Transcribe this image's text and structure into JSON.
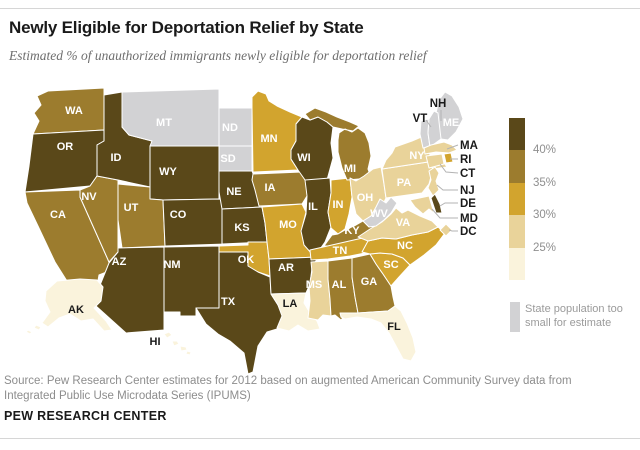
{
  "header": {
    "title": "Newly Eligible for Deportation Relief by State",
    "subtitle": "Estimated % of unauthorized immigrants newly eligible for deportation relief"
  },
  "legend": {
    "tick_labels": [
      "40%",
      "35%",
      "30%",
      "25%"
    ],
    "bins": [
      {
        "id": "gt40",
        "range": ">40%",
        "color": "#5a4819"
      },
      {
        "id": "b35_40",
        "range": "35-40%",
        "color": "#9c7c2e"
      },
      {
        "id": "b30_35",
        "range": "30-35%",
        "color": "#d2a42e"
      },
      {
        "id": "b25_30",
        "range": "25-30%",
        "color": "#e9d39a"
      },
      {
        "id": "lt25",
        "range": "<25%",
        "color": "#faf3dc"
      }
    ],
    "too_small": {
      "label": "State population too small for estimate",
      "color": "#d2d2d4"
    }
  },
  "map": {
    "label_color_dark": "#1a1a1a",
    "label_color_light": "#ffffff",
    "border_color": "#ffffff",
    "leader_line_color": "#b3b3b3",
    "states": {
      "WA": {
        "abbr": "WA",
        "bin": "b35_40"
      },
      "OR": {
        "abbr": "OR",
        "bin": "gt40"
      },
      "CA": {
        "abbr": "CA",
        "bin": "b35_40"
      },
      "NV": {
        "abbr": "NV",
        "bin": "b35_40"
      },
      "ID": {
        "abbr": "ID",
        "bin": "gt40"
      },
      "MT": {
        "abbr": "MT",
        "bin": "na"
      },
      "WY": {
        "abbr": "WY",
        "bin": "gt40"
      },
      "UT": {
        "abbr": "UT",
        "bin": "b35_40"
      },
      "CO": {
        "abbr": "CO",
        "bin": "gt40"
      },
      "AZ": {
        "abbr": "AZ",
        "bin": "gt40"
      },
      "NM": {
        "abbr": "NM",
        "bin": "gt40"
      },
      "ND": {
        "abbr": "ND",
        "bin": "na"
      },
      "SD": {
        "abbr": "SD",
        "bin": "na"
      },
      "NE": {
        "abbr": "NE",
        "bin": "gt40"
      },
      "KS": {
        "abbr": "KS",
        "bin": "gt40"
      },
      "OK": {
        "abbr": "OK",
        "bin": "b30_35"
      },
      "TX": {
        "abbr": "TX",
        "bin": "gt40"
      },
      "MN": {
        "abbr": "MN",
        "bin": "b30_35"
      },
      "IA": {
        "abbr": "IA",
        "bin": "b35_40"
      },
      "MO": {
        "abbr": "MO",
        "bin": "b30_35"
      },
      "AR": {
        "abbr": "AR",
        "bin": "gt40"
      },
      "LA": {
        "abbr": "LA",
        "bin": "lt25"
      },
      "WI": {
        "abbr": "WI",
        "bin": "gt40"
      },
      "IL": {
        "abbr": "IL",
        "bin": "gt40"
      },
      "IN": {
        "abbr": "IN",
        "bin": "b30_35"
      },
      "MI": {
        "abbr": "MI",
        "bin": "b35_40"
      },
      "OH": {
        "abbr": "OH",
        "bin": "b25_30"
      },
      "KY": {
        "abbr": "KY",
        "bin": "b35_40"
      },
      "TN": {
        "abbr": "TN",
        "bin": "b30_35"
      },
      "MS": {
        "abbr": "MS",
        "bin": "b25_30"
      },
      "AL": {
        "abbr": "AL",
        "bin": "b35_40"
      },
      "GA": {
        "abbr": "GA",
        "bin": "b35_40"
      },
      "FL": {
        "abbr": "FL",
        "bin": "lt25"
      },
      "SC": {
        "abbr": "SC",
        "bin": "b30_35"
      },
      "NC": {
        "abbr": "NC",
        "bin": "b30_35"
      },
      "VA": {
        "abbr": "VA",
        "bin": "b25_30"
      },
      "WV": {
        "abbr": "WV",
        "bin": "na"
      },
      "PA": {
        "abbr": "PA",
        "bin": "b25_30"
      },
      "NY": {
        "abbr": "NY",
        "bin": "b25_30"
      },
      "ME": {
        "abbr": "ME",
        "bin": "na"
      },
      "VT": {
        "abbr": "VT",
        "bin": "na"
      },
      "NH": {
        "abbr": "NH",
        "bin": "na"
      },
      "MA": {
        "abbr": "MA",
        "bin": "b25_30"
      },
      "RI": {
        "abbr": "RI",
        "bin": "b30_35"
      },
      "CT": {
        "abbr": "CT",
        "bin": "b25_30"
      },
      "NJ": {
        "abbr": "NJ",
        "bin": "b25_30"
      },
      "DE": {
        "abbr": "DE",
        "bin": "gt40"
      },
      "MD": {
        "abbr": "MD",
        "bin": "b25_30"
      },
      "DC": {
        "abbr": "DC",
        "bin": "b25_30"
      },
      "AK": {
        "abbr": "AK",
        "bin": "lt25"
      },
      "HI": {
        "abbr": "HI",
        "bin": "lt25"
      }
    }
  },
  "chart_data": {
    "type": "heatmap",
    "subtype": "us-state-choropleth",
    "title": "Newly Eligible for Deportation Relief by State",
    "subtitle": "Estimated % of unauthorized immigrants newly eligible for deportation relief",
    "legend_ticks": [
      "40%",
      "35%",
      "30%",
      "25%"
    ],
    "bins": [
      ">40%",
      "35-40%",
      "30-35%",
      "25-30%",
      "<25%",
      "State population too small for estimate"
    ],
    "states_by_bin": {
      ">40%": [
        "OR",
        "ID",
        "WY",
        "NE",
        "KS",
        "CO",
        "AZ",
        "NM",
        "TX",
        "WI",
        "IL",
        "AR",
        "DE"
      ],
      "35-40%": [
        "WA",
        "CA",
        "NV",
        "UT",
        "IA",
        "MI",
        "KY",
        "AL",
        "GA"
      ],
      "30-35%": [
        "MN",
        "MO",
        "IN",
        "OK",
        "TN",
        "NC",
        "SC",
        "RI"
      ],
      "25-30%": [
        "OH",
        "PA",
        "NY",
        "NJ",
        "CT",
        "MA",
        "MD",
        "DC",
        "VA",
        "MS"
      ],
      "<25%": [
        "AK",
        "HI",
        "LA",
        "FL"
      ],
      "State population too small for estimate": [
        "MT",
        "ND",
        "SD",
        "ME",
        "VT",
        "NH",
        "WV"
      ]
    },
    "legend_position": "right"
  },
  "footer": {
    "source": "Source: Pew Research Center estimates for 2012 based on augmented American Community Survey data from Integrated Public Use Microdata Series (IPUMS)",
    "brand": "PEW RESEARCH CENTER"
  }
}
